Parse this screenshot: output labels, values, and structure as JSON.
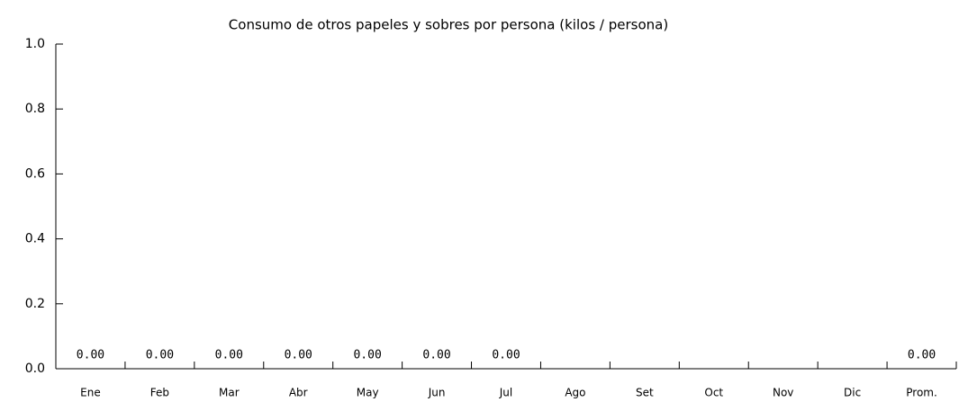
{
  "chart_data": {
    "type": "bar",
    "title": "Consumo de otros papeles y sobres por persona (kilos / persona)",
    "categories": [
      "Ene",
      "Feb",
      "Mar",
      "Abr",
      "May",
      "Jun",
      "Jul",
      "Ago",
      "Set",
      "Oct",
      "Nov",
      "Dic",
      "Prom."
    ],
    "values": [
      0,
      0,
      0,
      0,
      0,
      0,
      0,
      null,
      null,
      null,
      null,
      null,
      0
    ],
    "value_labels": [
      "0.00",
      "0.00",
      "0.00",
      "0.00",
      "0.00",
      "0.00",
      "0.00",
      null,
      null,
      null,
      null,
      null,
      "0.00"
    ],
    "color": "#000000",
    "ylim": [
      0,
      1
    ],
    "yticks": [
      {
        "value": 0,
        "label": "0.0"
      },
      0.2,
      0.4,
      0.6,
      0.8,
      {
        "value": 1,
        "label": "1.0"
      }
    ],
    "grid": false
  }
}
